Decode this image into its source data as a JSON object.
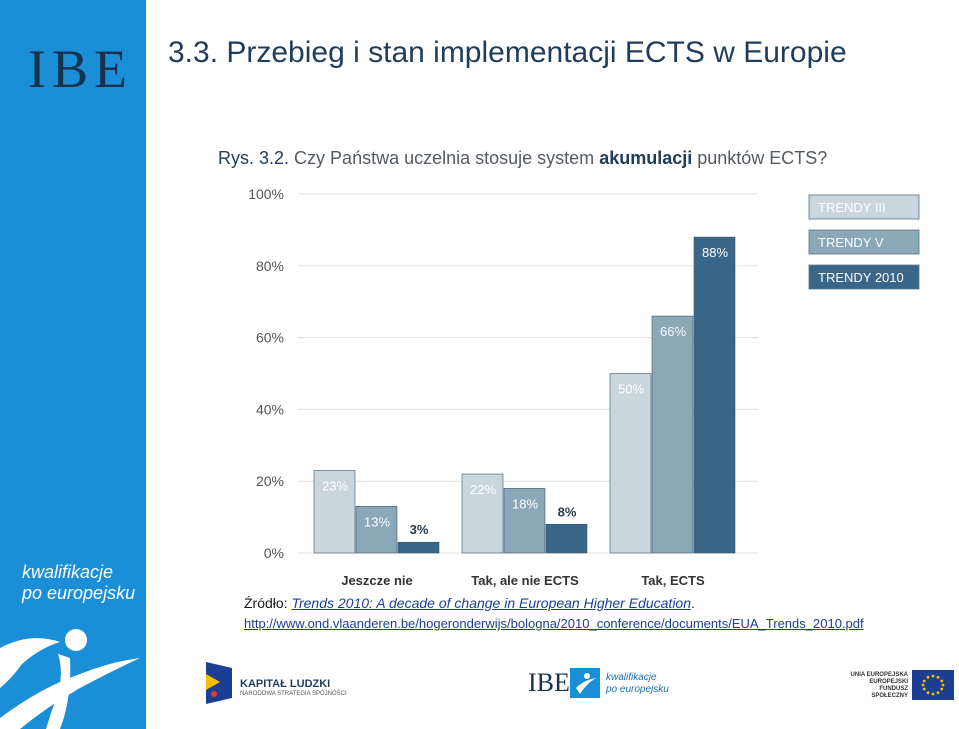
{
  "header": {
    "logo": "IBE",
    "title": "3.3. Przebieg i stan implementacji ECTS w Europie"
  },
  "question": {
    "lead": "Rys. 3.2.",
    "text_before": "Czy Państwa uczelnia stosuje system",
    "emphasis": "akumulacji",
    "text_after": "punktów ECTS?"
  },
  "sidebar": {
    "brand_line1": "kwalifikacje",
    "brand_line2": "po europejsku"
  },
  "chart_data": {
    "type": "bar",
    "categories": [
      "Jeszcze nie",
      "Tak, ale nie ECTS",
      "Tak, ECTS"
    ],
    "series": [
      {
        "name": "TRENDY III",
        "values": [
          23,
          22,
          50
        ],
        "labels": [
          "23%",
          "22%",
          "50%"
        ],
        "color": "#c9d6de"
      },
      {
        "name": "TRENDY V",
        "values": [
          13,
          18,
          66
        ],
        "labels": [
          "13%",
          "18%",
          "66%"
        ],
        "color": "#8ba8b9"
      },
      {
        "name": "TRENDY 2010",
        "values": [
          3,
          8,
          88
        ],
        "labels": [
          "3%",
          "8%",
          "88%"
        ],
        "color": "#3a6789"
      }
    ],
    "ylim": [
      0,
      100
    ],
    "yticks": [
      0,
      20,
      40,
      60,
      80,
      100
    ],
    "ytick_labels": [
      "0%",
      "20%",
      "40%",
      "60%",
      "80%",
      "100%"
    ],
    "grid": true,
    "legend": "top-right"
  },
  "source": {
    "prefix": "Źródło:",
    "title": "Trends 2010: A decade of change in European Higher Education",
    "suffix": ".",
    "url": "http://www.ond.vlaanderen.be/hogeronderwijs/bologna/2010_conference/documents/EUA_Trends_2010.pdf"
  },
  "footer": {
    "kl_name": "KAPITAŁ LUDZKI",
    "kl_sub": "NARODOWA STRATEGIA SPÓJNOŚCI",
    "ibe": "IBE",
    "ibe_brand_line1": "kwalifikacje",
    "ibe_brand_line2": "po europejsku",
    "eu_line1": "UNIA EUROPEJSKA",
    "eu_line2": "EUROPEJSKI",
    "eu_line3": "FUNDUSZ SPOŁECZNY"
  },
  "colors": {
    "sidebar": "#1a8fd8",
    "title": "#1f3d5a",
    "axis_text": "#555555",
    "grid": "#e0e0e0"
  }
}
